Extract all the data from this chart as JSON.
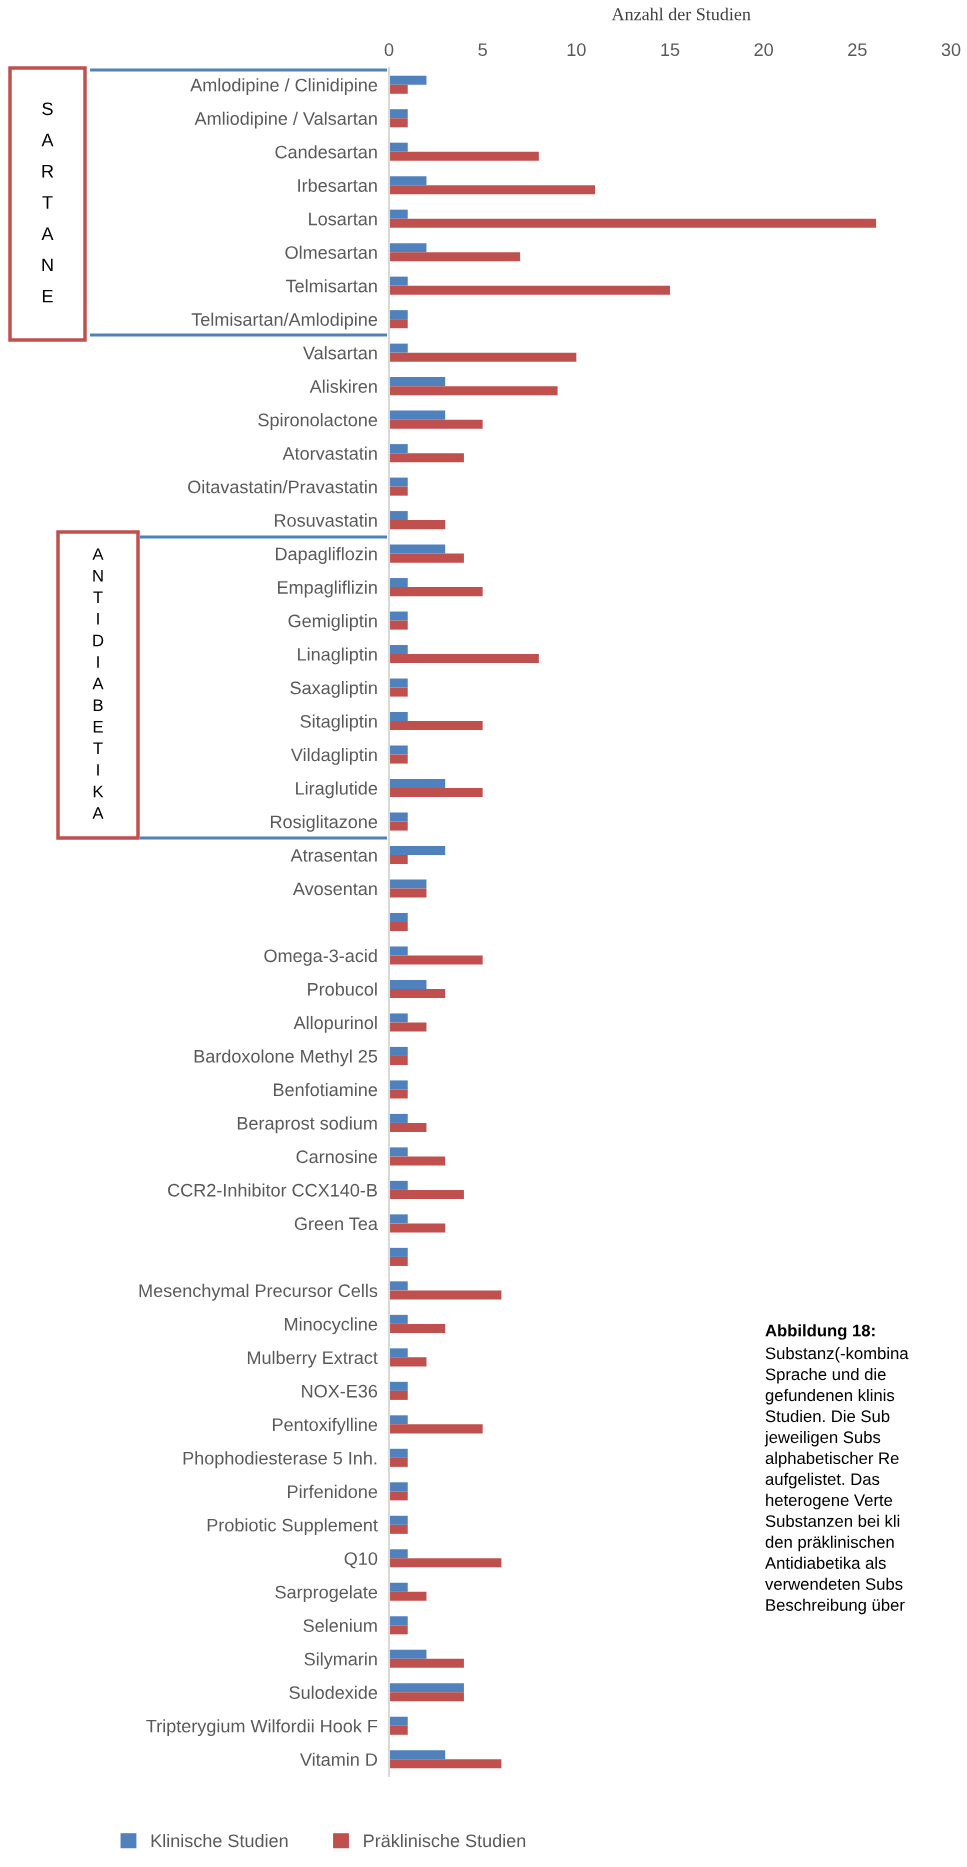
{
  "chart_data": {
    "type": "bar",
    "orientation": "horizontal",
    "xlabel": "Anzahl der Studien",
    "categories": [
      "Amlodipine / Clinidipine",
      "Amliodipine / Valsartan",
      "Candesartan",
      "Irbesartan",
      "Losartan",
      "Olmesartan",
      "Telmisartan",
      "Telmisartan/Amlodipine",
      "Valsartan",
      "Aliskiren",
      "Spironolactone",
      "Atorvastatin",
      "Oitavastatin/Pravastatin",
      "Rosuvastatin",
      "Dapagliflozin",
      "Empagliflizin",
      "Gemigliptin",
      "Linagliptin",
      "Saxagliptin",
      "Sitagliptin",
      "Vildagliptin",
      "Liraglutide",
      "Rosiglitazone",
      "Atrasentan",
      "Avosentan",
      null,
      "Omega-3-acid",
      "Probucol",
      "Allopurinol",
      "Bardoxolone Methyl 25",
      "Benfotiamine",
      "Beraprost sodium",
      "Carnosine",
      "CCR2-Inhibitor CCX140-B",
      "Green Tea",
      null,
      "Mesenchymal Precursor Cells",
      "Minocycline",
      "Mulberry Extract",
      "NOX-E36",
      "Pentoxifylline",
      "Phophodiesterase 5 Inh.",
      "Pirfenidone",
      "Probiotic Supplement",
      "Q10",
      "Sarprogelate",
      "Selenium",
      "Silymarin",
      "Sulodexide",
      "Tripterygium Wilfordii Hook F",
      "Vitamin D"
    ],
    "series": [
      {
        "name": "Klinische Studien",
        "color": "#4f81bd",
        "values": [
          2,
          1,
          1,
          2,
          1,
          2,
          1,
          1,
          1,
          3,
          3,
          1,
          1,
          1,
          3,
          1,
          1,
          1,
          1,
          1,
          1,
          3,
          1,
          3,
          2,
          1,
          1,
          2,
          1,
          1,
          1,
          1,
          1,
          1,
          1,
          1,
          1,
          1,
          1,
          1,
          1,
          1,
          1,
          1,
          1,
          1,
          1,
          2,
          4,
          1,
          3
        ]
      },
      {
        "name": "Präklinische Studien",
        "color": "#c0504d",
        "values": [
          1,
          1,
          8,
          11,
          26,
          7,
          15,
          1,
          10,
          9,
          5,
          4,
          1,
          3,
          4,
          5,
          1,
          8,
          1,
          5,
          1,
          5,
          1,
          1,
          2,
          1,
          5,
          3,
          2,
          1,
          1,
          2,
          3,
          4,
          3,
          1,
          6,
          3,
          2,
          1,
          5,
          1,
          1,
          1,
          6,
          2,
          1,
          4,
          4,
          1,
          6
        ]
      }
    ],
    "xlim": [
      0,
      30
    ],
    "xticks": [
      0,
      5,
      10,
      15,
      20,
      25,
      30
    ],
    "grid": false,
    "legend": "bottom",
    "annotations": [
      "SARTANE",
      "ANTIDIABETIKA",
      "Abbildung 18:",
      "Substanz(-kombina\nSprache und die\ngefundenen klinis\nStudien. Die Sub\njeweiligen Subs\nalphabetischer Re\naufgelistet. Das\nheterogene Verte\nSubstanzen bei kli\nden präklinischen\nAntidiabetika als\nverwendeten Subs\nBeschreibung über"
    ]
  }
}
